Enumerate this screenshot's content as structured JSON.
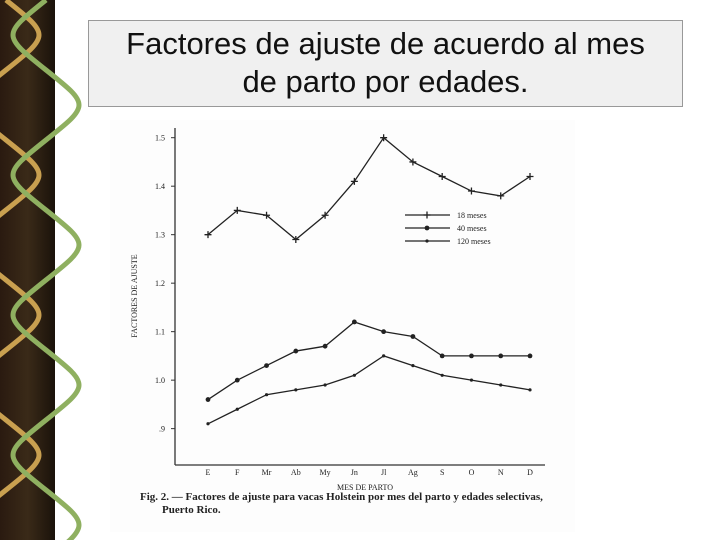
{
  "header": {
    "title": "Factores de ajuste de acuerdo al mes de parto por edades."
  },
  "chart_data": {
    "type": "line",
    "y_label": "FACTORES DE AJUSTE",
    "x_label": "MES DE PARTO",
    "caption": "Fig. 2. — Factores de ajuste para vacas Holstein por mes del parto y edades selectivas, Puerto Rico.",
    "categories": [
      "E",
      "F",
      "Mr",
      "Ab",
      "My",
      "Jn",
      "Jl",
      "Ag",
      "S",
      "O",
      "N",
      "D"
    ],
    "series": [
      {
        "name": "18 meses",
        "color": "#222222",
        "marker": "plus",
        "values": [
          1.3,
          1.35,
          1.34,
          1.29,
          1.34,
          1.41,
          1.5,
          1.45,
          1.42,
          1.39,
          1.38,
          1.42
        ]
      },
      {
        "name": "40 meses",
        "color": "#222222",
        "marker": "dot",
        "values": [
          0.96,
          1.0,
          1.03,
          1.06,
          1.07,
          1.12,
          1.1,
          1.09,
          1.05,
          1.05,
          1.05,
          1.05
        ]
      },
      {
        "name": "120 meses",
        "color": "#222222",
        "marker": "small-dot",
        "values": [
          0.91,
          0.94,
          0.97,
          0.98,
          0.99,
          1.01,
          1.05,
          1.03,
          1.01,
          1.0,
          0.99,
          0.98
        ]
      }
    ],
    "ylim": [
      0.825,
      1.52
    ],
    "yticks": [
      1.5,
      1.4,
      1.3,
      1.2,
      1.1,
      {
        "value": 1,
        "label": "1.0"
      },
      {
        "value": 0.9,
        "label": ".9"
      }
    ],
    "grid": false
  }
}
